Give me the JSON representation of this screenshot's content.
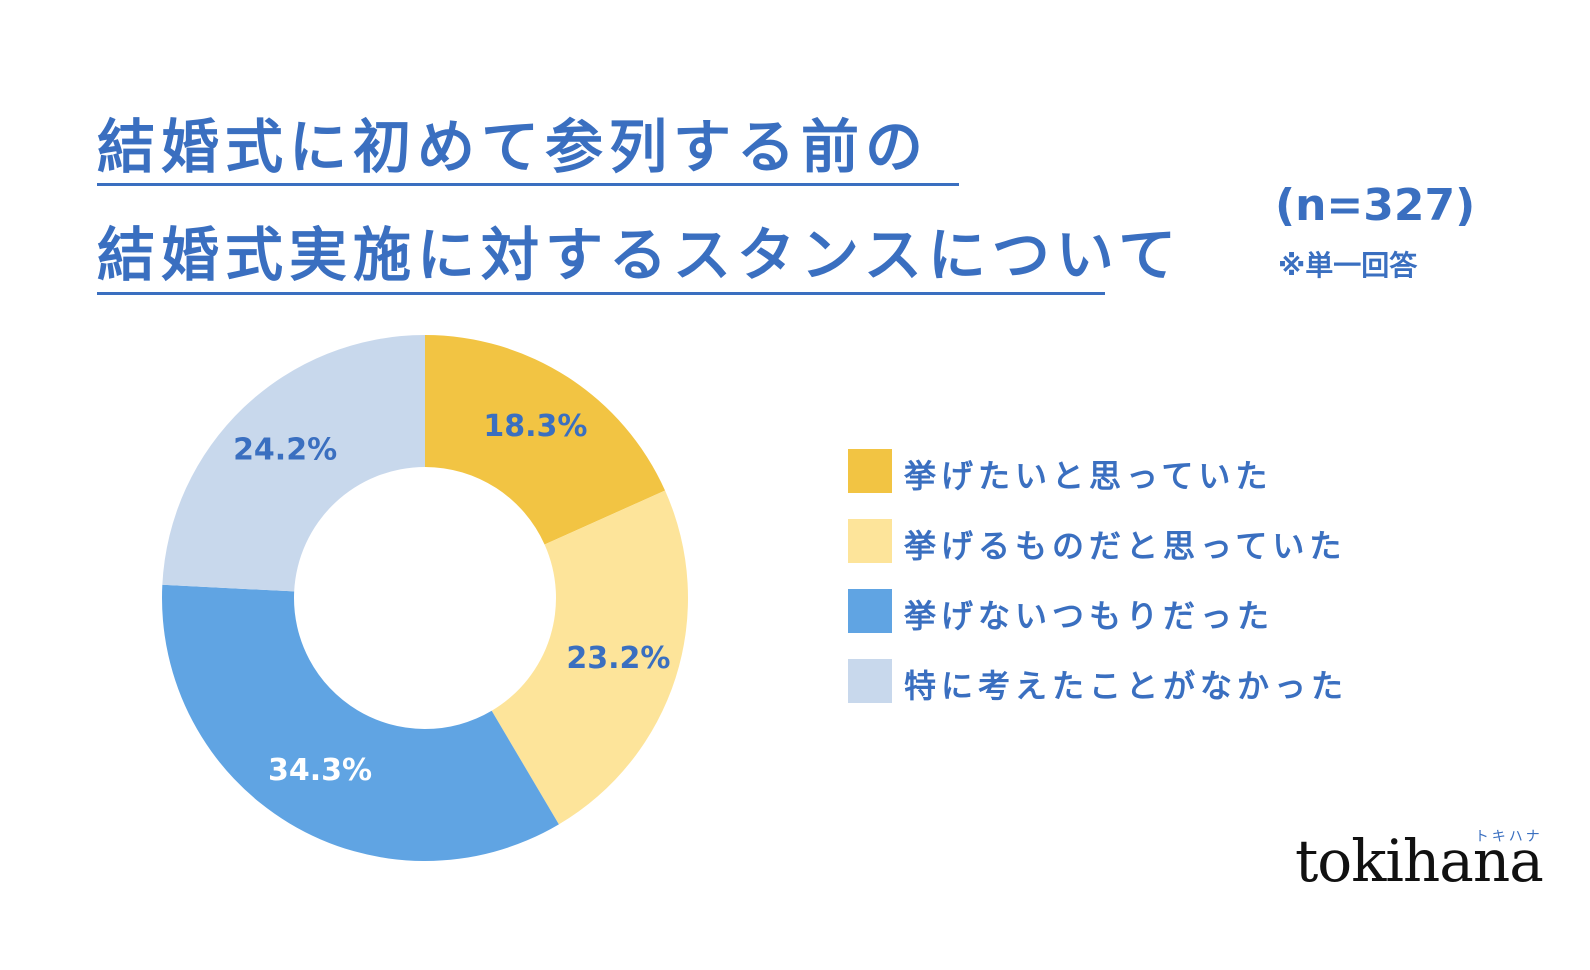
{
  "title": {
    "line1": "結婚式に初めて参列する前の",
    "line2": "結婚式実施に対するスタンスについて"
  },
  "sample_size": "(n=327)",
  "note": "※単一回答",
  "logo": {
    "word": "tokihana",
    "kana": "トキハナ"
  },
  "chart_data": {
    "type": "pie",
    "style": "donut",
    "title": "結婚式に初めて参列する前の結婚式実施に対するスタンスについて",
    "categories": [
      "挙げたいと思っていた",
      "挙げるものだと思っていた",
      "挙げないつもりだった",
      "特に考えたことがなかった"
    ],
    "values": [
      18.3,
      23.2,
      34.3,
      24.2
    ],
    "data_labels": [
      "18.3%",
      "23.2%",
      "34.3%",
      "24.2%"
    ],
    "colors": [
      "#f2c443",
      "#fde49a",
      "#60a4e3",
      "#c8d8ec"
    ],
    "label_colors": [
      "#3a6fc0",
      "#3a6fc0",
      "#ffffff",
      "#3a6fc0"
    ],
    "legend_position": "right"
  }
}
